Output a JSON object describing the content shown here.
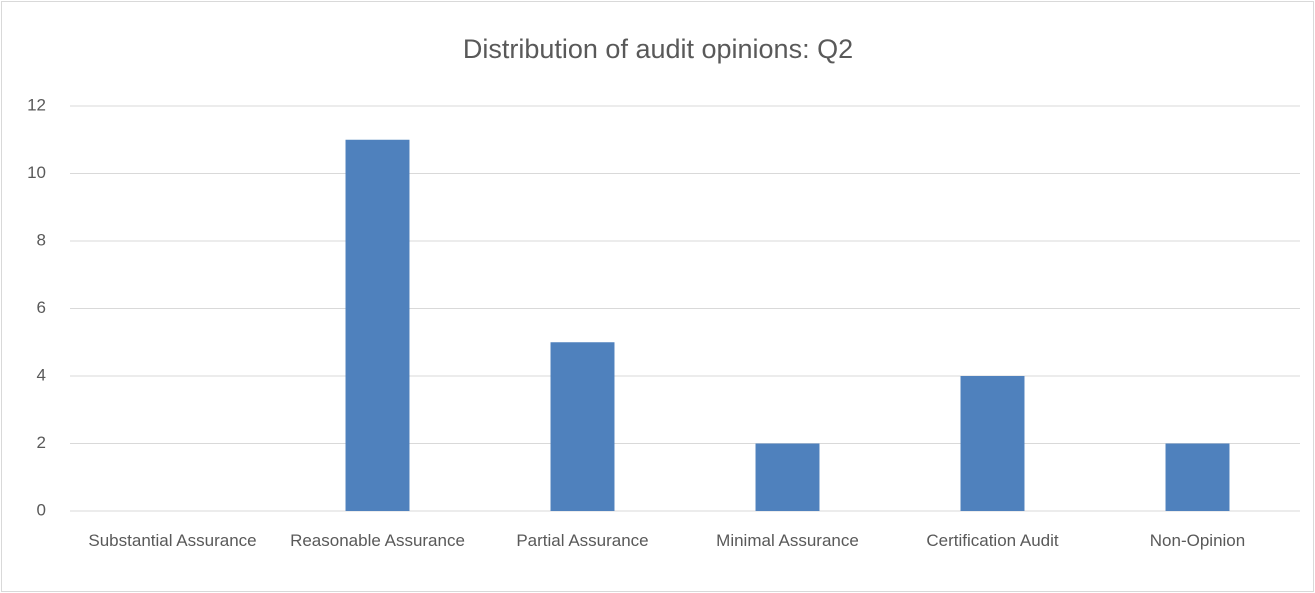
{
  "chart_data": {
    "type": "bar",
    "title": "Distribution of audit opinions: Q2",
    "categories": [
      "Substantial Assurance",
      "Reasonable Assurance",
      "Partial Assurance",
      "Minimal Assurance",
      "Certification Audit",
      "Non-Opinion"
    ],
    "values": [
      0,
      11,
      5,
      2,
      4,
      2
    ],
    "color": "#4f81bd",
    "ylim": [
      0,
      12
    ],
    "yticks": [
      0,
      2,
      4,
      6,
      8,
      10,
      12
    ],
    "grid": true
  }
}
